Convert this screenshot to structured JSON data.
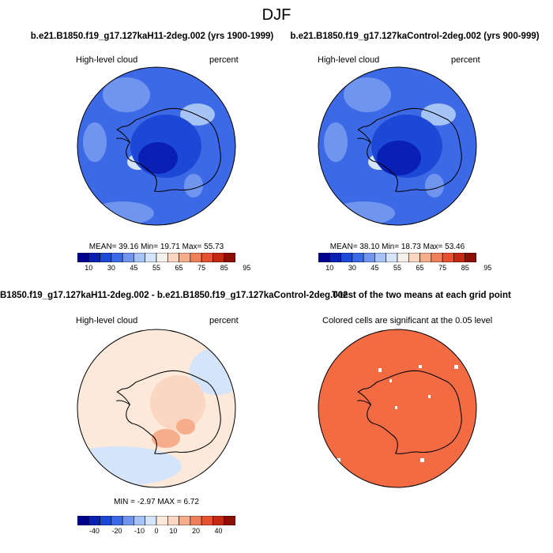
{
  "figure": {
    "title": "DJF"
  },
  "colors": {
    "blue_levels": [
      "#00008f",
      "#0a1fb4",
      "#1c48d6",
      "#3c6ae6",
      "#6f95ef",
      "#a6c3f6",
      "#d4e4fb",
      "#f4f1ec",
      "#fbd7c3",
      "#f6ad8b",
      "#ef7f59",
      "#e4522f",
      "#c42812",
      "#8c0f06"
    ],
    "diff_levels": [
      "#00008f",
      "#0a1fb4",
      "#1c48d6",
      "#3c6ae6",
      "#6f95ef",
      "#a6c3f6",
      "#d4e4fb",
      "#fde9d9",
      "#fbd7c3",
      "#f6ad8b",
      "#ef7f59",
      "#e4522f",
      "#c42812",
      "#8c0f06"
    ],
    "signif_fill": "#f26b42"
  },
  "panels": [
    {
      "title": "b.e21.B1850.f19_g17.127kaH11-2deg.002 (yrs 1900-1999)",
      "left_label": "High-level cloud",
      "right_label": "percent",
      "stats": "MEAN=  39.16  Min=  19.71  Max=  55.73",
      "colorbar_labels": [
        "10",
        "30",
        "45",
        "55",
        "65",
        "75",
        "85",
        "95"
      ]
    },
    {
      "title": "b.e21.B1850.f19_g17.127kaControl-2deg.002 (yrs 900-999)",
      "left_label": "High-level cloud",
      "right_label": "percent",
      "stats": "MEAN=  38.10  Min=  18.73  Max=  53.46",
      "colorbar_labels": [
        "10",
        "30",
        "45",
        "55",
        "65",
        "75",
        "85",
        "95"
      ]
    },
    {
      "title": "B1850.f19_g17.127kaH11-2deg.002 - b.e21.B1850.f19_g17.127kaControl-2deg.002",
      "left_label": "High-level cloud",
      "right_label": "percent",
      "stats": "MIN =  -2.97  MAX =   6.72",
      "colorbar_labels": [
        "-40",
        "-20",
        "-10",
        "0",
        "10",
        "20",
        "40"
      ]
    },
    {
      "title": "T-test of the two means at each grid point",
      "left_label": "Colored cells are significant at the 0.05 level"
    }
  ]
}
